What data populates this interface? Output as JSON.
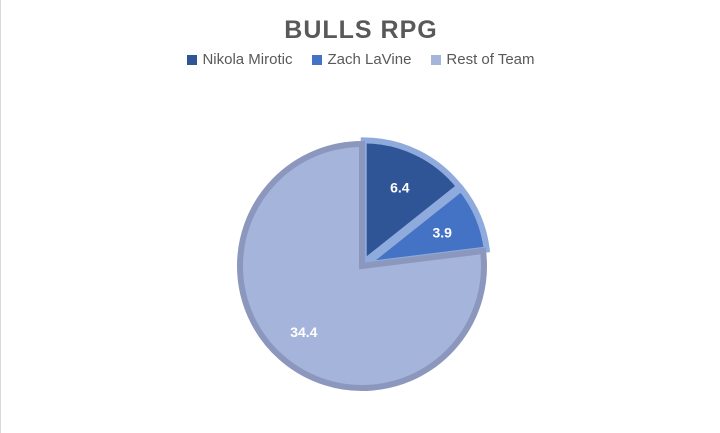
{
  "chart_data": {
    "type": "pie",
    "title": "BULLS RPG",
    "legend_position": "top",
    "categories": [
      "Nikola Mirotic",
      "Zach LaVine",
      "Rest of Team"
    ],
    "values": [
      6.4,
      3.9,
      34.4
    ],
    "data_labels": [
      "6.4",
      "3.9",
      "34.4"
    ],
    "colors": [
      "#2F5597",
      "#4472C4",
      "#A5B4DA"
    ],
    "border_colors": [
      "#8FAADC",
      "#8FAADC",
      "#8C97BD"
    ],
    "exploded": [
      true,
      true,
      false
    ],
    "start_angle": "12 o'clock, clockwise"
  }
}
